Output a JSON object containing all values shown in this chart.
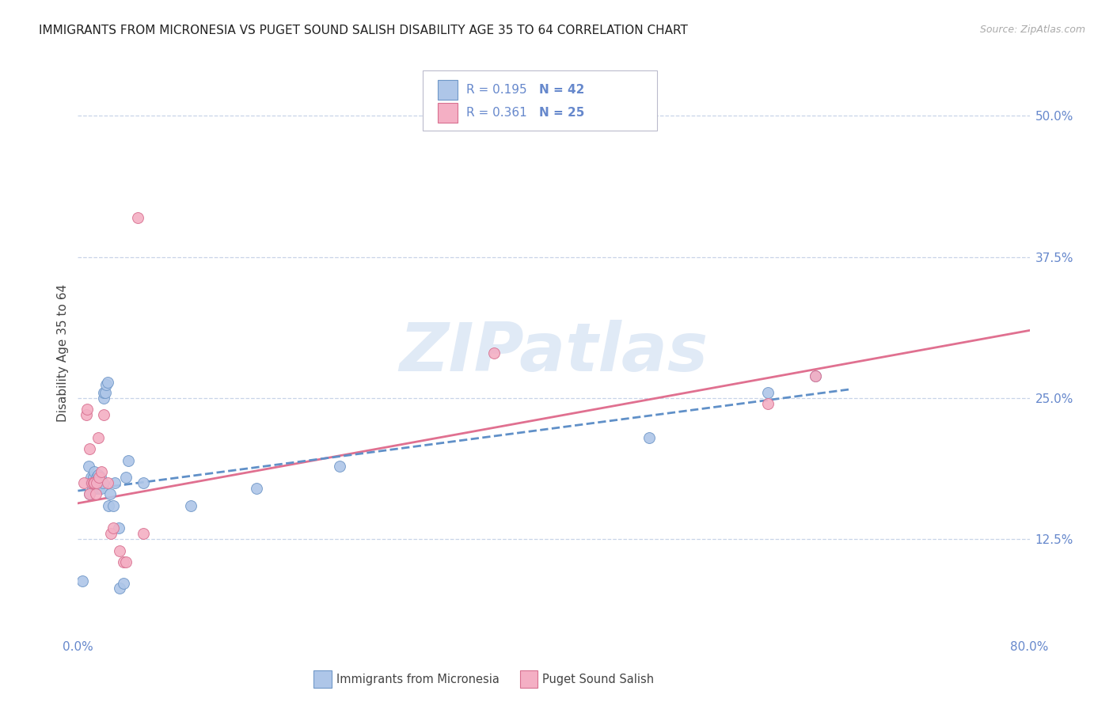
{
  "title": "IMMIGRANTS FROM MICRONESIA VS PUGET SOUND SALISH DISABILITY AGE 35 TO 64 CORRELATION CHART",
  "source": "Source: ZipAtlas.com",
  "ylabel": "Disability Age 35 to 64",
  "xmin": 0.0,
  "xmax": 0.8,
  "ymin": 0.04,
  "ymax": 0.54,
  "ytick_values": [
    0.125,
    0.25,
    0.375,
    0.5
  ],
  "ytick_labels": [
    "12.5%",
    "25.0%",
    "37.5%",
    "50.0%"
  ],
  "xtick_values": [
    0.0,
    0.8
  ],
  "xtick_labels": [
    "0.0%",
    "80.0%"
  ],
  "watermark": "ZIPatlas",
  "color_blue": "#aec6e8",
  "color_pink": "#f4afc4",
  "edge_blue": "#7098c8",
  "edge_pink": "#d87090",
  "line_blue": "#6090c8",
  "line_pink": "#e07090",
  "bg_color": "#ffffff",
  "grid_color": "#c8d4e8",
  "tick_color": "#6688cc",
  "label1": "Immigrants from Micronesia",
  "label2": "Puget Sound Salish",
  "blue_scatter_x": [
    0.004,
    0.009,
    0.01,
    0.011,
    0.011,
    0.012,
    0.013,
    0.013,
    0.014,
    0.015,
    0.015,
    0.016,
    0.016,
    0.017,
    0.017,
    0.018,
    0.018,
    0.019,
    0.019,
    0.02,
    0.021,
    0.022,
    0.022,
    0.023,
    0.024,
    0.025,
    0.026,
    0.027,
    0.03,
    0.031,
    0.034,
    0.035,
    0.038,
    0.04,
    0.042,
    0.055,
    0.095,
    0.15,
    0.22,
    0.48,
    0.58,
    0.62
  ],
  "blue_scatter_y": [
    0.088,
    0.19,
    0.165,
    0.175,
    0.18,
    0.172,
    0.175,
    0.18,
    0.185,
    0.17,
    0.17,
    0.175,
    0.18,
    0.18,
    0.182,
    0.17,
    0.175,
    0.175,
    0.18,
    0.17,
    0.175,
    0.25,
    0.255,
    0.255,
    0.262,
    0.264,
    0.155,
    0.165,
    0.155,
    0.175,
    0.135,
    0.082,
    0.086,
    0.18,
    0.195,
    0.175,
    0.155,
    0.17,
    0.19,
    0.215,
    0.255,
    0.27
  ],
  "pink_scatter_x": [
    0.005,
    0.007,
    0.008,
    0.01,
    0.01,
    0.012,
    0.013,
    0.014,
    0.015,
    0.016,
    0.017,
    0.018,
    0.02,
    0.022,
    0.025,
    0.028,
    0.03,
    0.035,
    0.038,
    0.04,
    0.05,
    0.055,
    0.35,
    0.58,
    0.62
  ],
  "pink_scatter_y": [
    0.175,
    0.235,
    0.24,
    0.205,
    0.165,
    0.175,
    0.175,
    0.175,
    0.165,
    0.175,
    0.215,
    0.18,
    0.185,
    0.235,
    0.175,
    0.13,
    0.135,
    0.115,
    0.105,
    0.105,
    0.41,
    0.13,
    0.29,
    0.245,
    0.27
  ],
  "blue_line_x": [
    0.0,
    0.65
  ],
  "blue_line_y": [
    0.168,
    0.258
  ],
  "pink_line_x": [
    0.0,
    0.8
  ],
  "pink_line_y": [
    0.157,
    0.31
  ]
}
